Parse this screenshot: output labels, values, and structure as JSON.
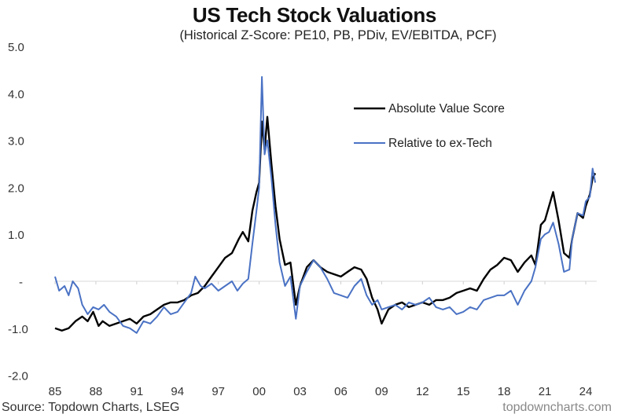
{
  "chart_data": {
    "type": "line",
    "title": "US Tech Stock Valuations",
    "subtitle": "(Historical Z-Score: PE10, PB, PDiv, EV/EBITDA, PCF)",
    "xlabel": "",
    "ylabel": "",
    "ylim": [
      -2.0,
      5.0
    ],
    "xlim": [
      1985,
      2024.8
    ],
    "yticks": [
      {
        "value": 5.0,
        "label": "5.0"
      },
      {
        "value": 4.0,
        "label": "4.0"
      },
      {
        "value": 3.0,
        "label": "3.0"
      },
      {
        "value": 2.0,
        "label": "2.0"
      },
      {
        "value": 1.0,
        "label": "1.0"
      },
      {
        "value": 0.0,
        "label": "-"
      },
      {
        "value": -1.0,
        "label": "-1.0"
      },
      {
        "value": -2.0,
        "label": "-2.0"
      }
    ],
    "xticks": [
      {
        "value": 1985,
        "label": "85"
      },
      {
        "value": 1988,
        "label": "88"
      },
      {
        "value": 1991,
        "label": "91"
      },
      {
        "value": 1994,
        "label": "94"
      },
      {
        "value": 1997,
        "label": "97"
      },
      {
        "value": 2000,
        "label": "00"
      },
      {
        "value": 2003,
        "label": "03"
      },
      {
        "value": 2006,
        "label": "06"
      },
      {
        "value": 2009,
        "label": "09"
      },
      {
        "value": 2012,
        "label": "12"
      },
      {
        "value": 2015,
        "label": "15"
      },
      {
        "value": 2018,
        "label": "18"
      },
      {
        "value": 2021,
        "label": "21"
      },
      {
        "value": 2024,
        "label": "24"
      }
    ],
    "zero_line": true,
    "legend_position": "top-right",
    "series": [
      {
        "name": "Absolute Value Score",
        "color": "#000000",
        "x": [
          1985.0,
          1985.5,
          1986.0,
          1986.5,
          1987.0,
          1987.4,
          1987.8,
          1988.2,
          1988.5,
          1989.0,
          1989.5,
          1990.0,
          1990.5,
          1991.0,
          1991.5,
          1992.0,
          1992.5,
          1993.0,
          1993.5,
          1994.0,
          1994.5,
          1995.0,
          1995.5,
          1996.0,
          1996.5,
          1997.0,
          1997.5,
          1998.0,
          1998.5,
          1998.8,
          1999.2,
          1999.5,
          1999.8,
          2000.0,
          2000.2,
          2000.4,
          2000.6,
          2000.9,
          2001.2,
          2001.5,
          2001.9,
          2002.3,
          2002.7,
          2003.0,
          2003.5,
          2004.0,
          2004.5,
          2005.0,
          2005.5,
          2006.0,
          2006.5,
          2007.0,
          2007.5,
          2007.9,
          2008.3,
          2008.7,
          2009.0,
          2009.5,
          2010.0,
          2010.5,
          2011.0,
          2011.5,
          2012.0,
          2012.5,
          2013.0,
          2013.5,
          2014.0,
          2014.5,
          2015.0,
          2015.5,
          2016.0,
          2016.5,
          2017.0,
          2017.5,
          2018.0,
          2018.5,
          2019.0,
          2019.5,
          2020.0,
          2020.3,
          2020.7,
          2021.0,
          2021.3,
          2021.6,
          2022.0,
          2022.4,
          2022.8,
          2023.0,
          2023.4,
          2023.8,
          2024.0,
          2024.3,
          2024.5,
          2024.7
        ],
        "y": [
          -1.0,
          -1.05,
          -1.0,
          -0.85,
          -0.75,
          -0.85,
          -0.65,
          -0.95,
          -0.85,
          -0.95,
          -0.9,
          -0.85,
          -0.8,
          -0.9,
          -0.75,
          -0.7,
          -0.6,
          -0.5,
          -0.45,
          -0.45,
          -0.4,
          -0.3,
          -0.25,
          -0.1,
          0.1,
          0.3,
          0.5,
          0.6,
          0.9,
          1.05,
          0.85,
          1.5,
          1.9,
          2.1,
          3.4,
          2.8,
          3.5,
          2.5,
          1.6,
          0.9,
          0.35,
          0.4,
          -0.5,
          -0.1,
          0.3,
          0.45,
          0.3,
          0.2,
          0.15,
          0.1,
          0.2,
          0.3,
          0.25,
          0.05,
          -0.35,
          -0.6,
          -0.9,
          -0.6,
          -0.5,
          -0.45,
          -0.55,
          -0.5,
          -0.45,
          -0.5,
          -0.4,
          -0.4,
          -0.35,
          -0.25,
          -0.2,
          -0.15,
          -0.2,
          0.05,
          0.25,
          0.35,
          0.5,
          0.45,
          0.2,
          0.4,
          0.55,
          0.35,
          1.2,
          1.3,
          1.6,
          1.9,
          1.3,
          0.6,
          0.5,
          0.9,
          1.45,
          1.35,
          1.6,
          1.85,
          2.2,
          2.3
        ]
      },
      {
        "name": "Relative to ex-Tech",
        "color": "#4a72c4",
        "x": [
          1985.0,
          1985.3,
          1985.7,
          1986.0,
          1986.3,
          1986.7,
          1987.0,
          1987.4,
          1987.8,
          1988.2,
          1988.6,
          1989.0,
          1989.5,
          1990.0,
          1990.5,
          1991.0,
          1991.5,
          1992.0,
          1992.5,
          1993.0,
          1993.5,
          1994.0,
          1994.5,
          1995.0,
          1995.3,
          1995.7,
          1996.0,
          1996.5,
          1997.0,
          1997.5,
          1998.0,
          1998.4,
          1998.8,
          1999.2,
          1999.5,
          1999.8,
          2000.0,
          2000.2,
          2000.4,
          2000.6,
          2000.9,
          2001.2,
          2001.5,
          2001.9,
          2002.3,
          2002.7,
          2003.0,
          2003.5,
          2004.0,
          2004.5,
          2005.0,
          2005.5,
          2006.0,
          2006.5,
          2007.0,
          2007.5,
          2007.9,
          2008.3,
          2008.7,
          2009.0,
          2009.5,
          2010.0,
          2010.5,
          2011.0,
          2011.5,
          2012.0,
          2012.5,
          2013.0,
          2013.5,
          2014.0,
          2014.5,
          2015.0,
          2015.5,
          2016.0,
          2016.5,
          2017.0,
          2017.5,
          2018.0,
          2018.5,
          2019.0,
          2019.5,
          2020.0,
          2020.3,
          2020.7,
          2021.0,
          2021.3,
          2021.6,
          2022.0,
          2022.4,
          2022.8,
          2023.0,
          2023.4,
          2023.8,
          2024.0,
          2024.3,
          2024.5,
          2024.7
        ],
        "y": [
          0.1,
          -0.2,
          -0.1,
          -0.3,
          0.0,
          -0.15,
          -0.5,
          -0.7,
          -0.55,
          -0.6,
          -0.5,
          -0.65,
          -0.75,
          -0.95,
          -1.0,
          -1.1,
          -0.85,
          -0.9,
          -0.75,
          -0.55,
          -0.7,
          -0.65,
          -0.45,
          -0.25,
          0.1,
          -0.1,
          -0.15,
          -0.05,
          -0.2,
          -0.1,
          0.0,
          -0.2,
          -0.05,
          0.05,
          0.8,
          1.5,
          2.0,
          4.35,
          2.7,
          3.0,
          2.2,
          1.2,
          0.4,
          -0.1,
          0.1,
          -0.8,
          -0.1,
          0.2,
          0.45,
          0.3,
          0.05,
          -0.25,
          -0.3,
          -0.35,
          -0.1,
          0.05,
          -0.3,
          -0.5,
          -0.4,
          -0.6,
          -0.55,
          -0.5,
          -0.6,
          -0.45,
          -0.5,
          -0.45,
          -0.35,
          -0.55,
          -0.6,
          -0.55,
          -0.7,
          -0.65,
          -0.55,
          -0.6,
          -0.4,
          -0.35,
          -0.3,
          -0.3,
          -0.2,
          -0.5,
          -0.2,
          0.0,
          0.3,
          0.9,
          1.0,
          1.05,
          1.25,
          0.8,
          0.2,
          0.25,
          0.9,
          1.45,
          1.4,
          1.7,
          1.8,
          2.4,
          2.1
        ]
      }
    ]
  },
  "footer": {
    "source": "Source: Topdown Charts, LSEG",
    "watermark": "topdowncharts.com"
  }
}
